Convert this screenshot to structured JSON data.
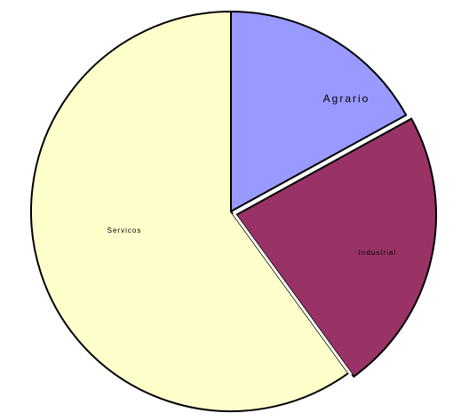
{
  "chart_data": {
    "type": "pie",
    "slices": [
      {
        "label": "Agrario",
        "value": 17,
        "color": "#9999ff"
      },
      {
        "label": "Industrial",
        "value": 23,
        "color": "#993366"
      },
      {
        "label": "Servicos",
        "value": 60,
        "color": "#ffffcc"
      }
    ],
    "title": "",
    "legend": "none"
  }
}
